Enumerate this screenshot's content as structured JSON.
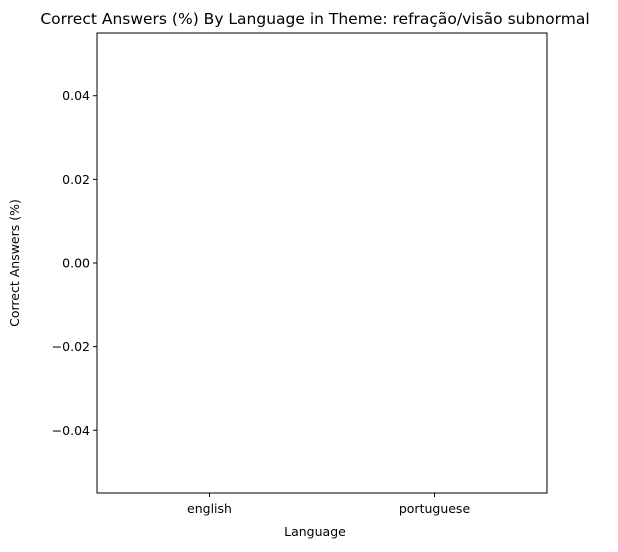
{
  "chart_data": {
    "type": "bar",
    "title": "Correct Answers (%) By Language in Theme: refração/visão subnormal",
    "xlabel": "Language",
    "ylabel": "Correct Answers (%)",
    "categories": [
      "english",
      "portuguese"
    ],
    "values": [
      0,
      0
    ],
    "ylim": [
      -0.055,
      0.055
    ],
    "yticks": [
      -0.04,
      -0.02,
      0.0,
      0.02,
      0.04
    ],
    "ytick_labels": [
      "−0.04",
      "−0.02",
      "0.00",
      "0.02",
      "0.04"
    ],
    "grid": false,
    "legend": "none"
  },
  "colors": {
    "axis": "#000000",
    "bar": "#1f77b4",
    "background": "#ffffff"
  }
}
